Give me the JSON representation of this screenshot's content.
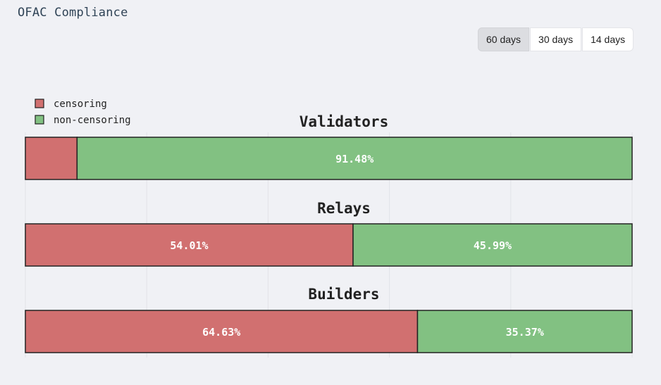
{
  "page": {
    "title": "OFAC Compliance"
  },
  "range_selector": {
    "options": [
      {
        "label": "60 days",
        "active": true
      },
      {
        "label": "30 days",
        "active": false
      },
      {
        "label": "14 days",
        "active": false
      }
    ]
  },
  "colors": {
    "censoring": "#d17070",
    "non_censoring": "#82c182",
    "background": "#f0f1f5",
    "bar_border": "#222222"
  },
  "chart_data": {
    "type": "bar",
    "orientation": "horizontal",
    "stacked": true,
    "xlim": [
      0,
      100
    ],
    "legend": {
      "placement": "top-left",
      "entries": [
        {
          "name": "censoring",
          "color": "#d17070"
        },
        {
          "name": "non-censoring",
          "color": "#82c182"
        }
      ]
    },
    "panels": [
      {
        "title": "Validators",
        "censoring": 8.52,
        "non_censoring": 91.48,
        "labels": [
          "",
          "91.48%"
        ]
      },
      {
        "title": "Relays",
        "censoring": 54.01,
        "non_censoring": 45.99,
        "labels": [
          "54.01%",
          "45.99%"
        ]
      },
      {
        "title": "Builders",
        "censoring": 64.63,
        "non_censoring": 35.37,
        "labels": [
          "64.63%",
          "35.37%"
        ]
      }
    ]
  }
}
